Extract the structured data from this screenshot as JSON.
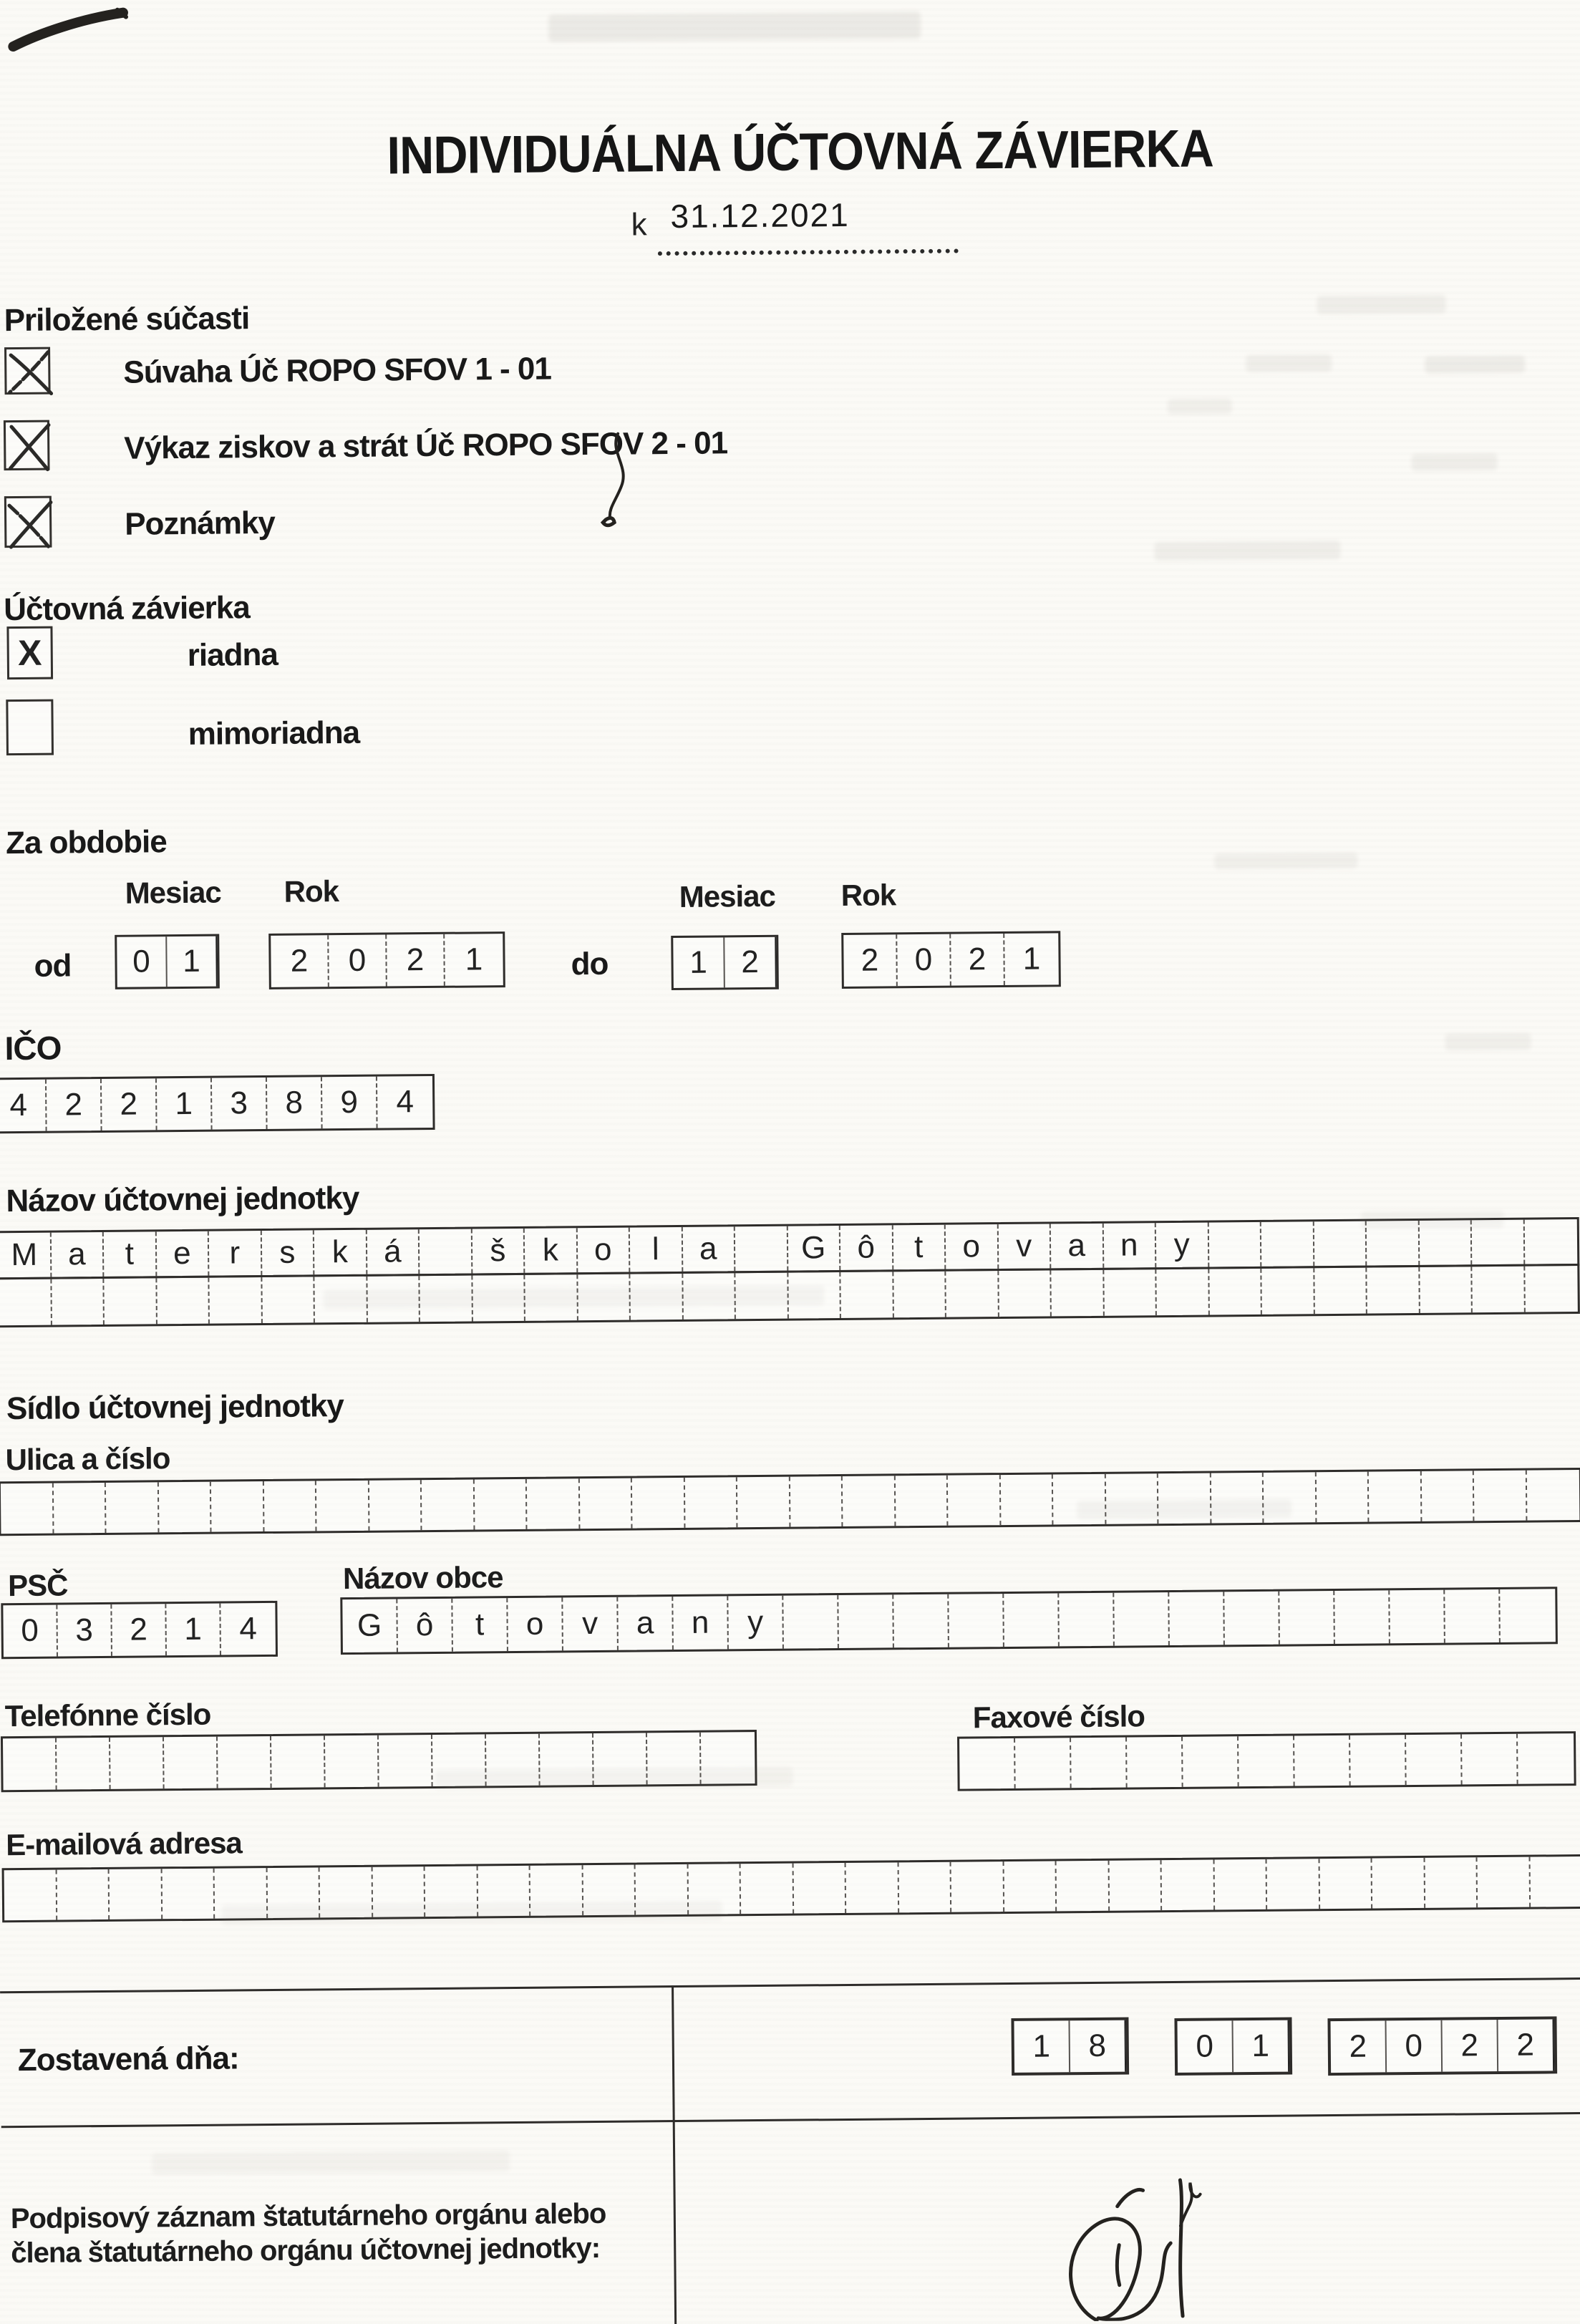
{
  "form": {
    "title": "INDIVIDUÁLNA ÚČTOVNÁ ZÁVIERKA",
    "as_of_prefix": "k",
    "as_of_date": "31.12.2021"
  },
  "attachments": {
    "heading": "Priložené súčasti",
    "items": [
      {
        "label": "Súvaha Úč ROPO SFOV 1 - 01",
        "checked": true
      },
      {
        "label": "Výkaz ziskov a strát Úč ROPO SFOV 2 - 01",
        "checked": true
      },
      {
        "label": "Poznámky",
        "checked": true
      }
    ]
  },
  "closing": {
    "heading": "Účtovná závierka",
    "options": [
      {
        "label": "riadna",
        "mark": "X",
        "checked": true
      },
      {
        "label": "mimoriadna",
        "mark": "",
        "checked": false
      }
    ]
  },
  "period": {
    "heading": "Za obdobie",
    "month_label": "Mesiac",
    "year_label": "Rok",
    "from_label": "od",
    "to_label": "do",
    "from_month": [
      "0",
      "1"
    ],
    "from_year": [
      "2",
      "0",
      "2",
      "1"
    ],
    "to_month": [
      "1",
      "2"
    ],
    "to_year": [
      "2",
      "0",
      "2",
      "1"
    ]
  },
  "ico": {
    "label": "IČO",
    "digits": [
      "4",
      "2",
      "2",
      "1",
      "3",
      "8",
      "9",
      "4"
    ]
  },
  "entity_name": {
    "label": "Názov účtovnej jednotky",
    "row1": [
      "M",
      "a",
      "t",
      "e",
      "r",
      "s",
      "k",
      "á",
      "",
      "š",
      "k",
      "o",
      "l",
      "a",
      "",
      "G",
      "ô",
      "t",
      "o",
      "v",
      "a",
      "n",
      "y",
      "",
      "",
      "",
      "",
      "",
      "",
      ""
    ],
    "row2": [
      "",
      "",
      "",
      "",
      "",
      "",
      "",
      "",
      "",
      "",
      "",
      "",
      "",
      "",
      "",
      "",
      "",
      "",
      "",
      "",
      "",
      "",
      "",
      "",
      "",
      "",
      "",
      "",
      "",
      ""
    ]
  },
  "address": {
    "heading": "Sídlo účtovnej jednotky",
    "street_label": "Ulica a číslo",
    "street_cells": [
      "",
      "",
      "",
      "",
      "",
      "",
      "",
      "",
      "",
      "",
      "",
      "",
      "",
      "",
      "",
      "",
      "",
      "",
      "",
      "",
      "",
      "",
      "",
      "",
      "",
      "",
      "",
      "",
      "",
      ""
    ],
    "psc_label": "PSČ",
    "psc_digits": [
      "0",
      "3",
      "2",
      "1",
      "4"
    ],
    "town_label": "Názov obce",
    "town_cells": [
      "G",
      "ô",
      "t",
      "o",
      "v",
      "a",
      "n",
      "y",
      "",
      "",
      "",
      "",
      "",
      "",
      "",
      "",
      "",
      "",
      "",
      "",
      "",
      ""
    ],
    "phone_label": "Telefónne číslo",
    "phone_cells": [
      "",
      "",
      "",
      "",
      "",
      "",
      "",
      "",
      "",
      "",
      "",
      "",
      "",
      ""
    ],
    "fax_label": "Faxové číslo",
    "fax_cells": [
      "",
      "",
      "",
      "",
      "",
      "",
      "",
      "",
      "",
      "",
      ""
    ],
    "email_label": "E-mailová adresa",
    "email_cells": [
      "",
      "",
      "",
      "",
      "",
      "",
      "",
      "",
      "",
      "",
      "",
      "",
      "",
      "",
      "",
      "",
      "",
      "",
      "",
      "",
      "",
      "",
      "",
      "",
      "",
      "",
      "",
      "",
      "",
      ""
    ]
  },
  "footer": {
    "compiled_label": "Zostavená dňa:",
    "compiled_day": [
      "1",
      "8"
    ],
    "compiled_month": [
      "0",
      "1"
    ],
    "compiled_year": [
      "2",
      "0",
      "2",
      "2"
    ],
    "signature_label_line1": "Podpisový záznam štatutárneho orgánu alebo",
    "signature_label_line2": "člena štatutárneho orgánu účtovnej jednotky:"
  }
}
